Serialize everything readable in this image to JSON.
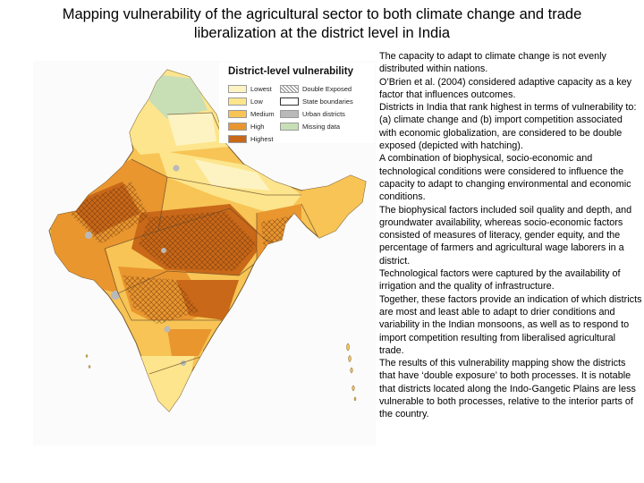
{
  "slide": {
    "title_line1": "Mapping vulnerability of the agricultural sector to both climate change and trade",
    "title_line2": "liberalization at the district level in India"
  },
  "legend": {
    "title": "District-level vulnerability",
    "items": [
      {
        "label": "Lowest",
        "color": "#fdf3c2"
      },
      {
        "label": "Double Exposed",
        "color": "hatch"
      },
      {
        "label": "Low",
        "color": "#fce58c"
      },
      {
        "label": "State boundaries",
        "color": "#ffffff"
      },
      {
        "label": "Medium",
        "color": "#f7c455"
      },
      {
        "label": "Urban districts",
        "color": "#b9b9b9"
      },
      {
        "label": "High",
        "color": "#e9962f"
      },
      {
        "label": "Missing data",
        "color": "#c8dfb6"
      },
      {
        "label": "Highest",
        "color": "#c86818"
      }
    ]
  },
  "body": {
    "paragraphs": [
      "The capacity to adapt to climate change is not evenly distributed within nations.",
      "O’Brien et al. (2004) considered adaptive capacity as a key factor that influences outcomes.",
      "Districts in India that rank highest in terms of vulnerability to: (a) climate change and (b) import competition associated with economic globalization, are considered to be double exposed (depicted with hatching).",
      "A combination of biophysical, socio-economic and technological conditions were considered to influence the capacity to adapt to changing environmental and economic conditions.",
      "The biophysical factors included soil quality and depth, and groundwater availability, whereas socio-economic factors consisted of measures of literacy, gender equity, and the percentage of farmers and agricultural wage laborers in a district.",
      "Technological factors were captured by the availability of irrigation and the quality of infrastructure.",
      "Together, these factors provide an indication of which districts are most and least able to adapt to drier conditions and variability in the Indian monsoons, as well as to respond to import competition resulting from liberalised agricultural trade.",
      "The results of this vulnerability mapping show the districts that have ‘double exposure’ to both processes. It is notable that districts located along the Indo-Gangetic Plains are less vulnerable to both processes, relative to the interior parts of the country."
    ]
  }
}
